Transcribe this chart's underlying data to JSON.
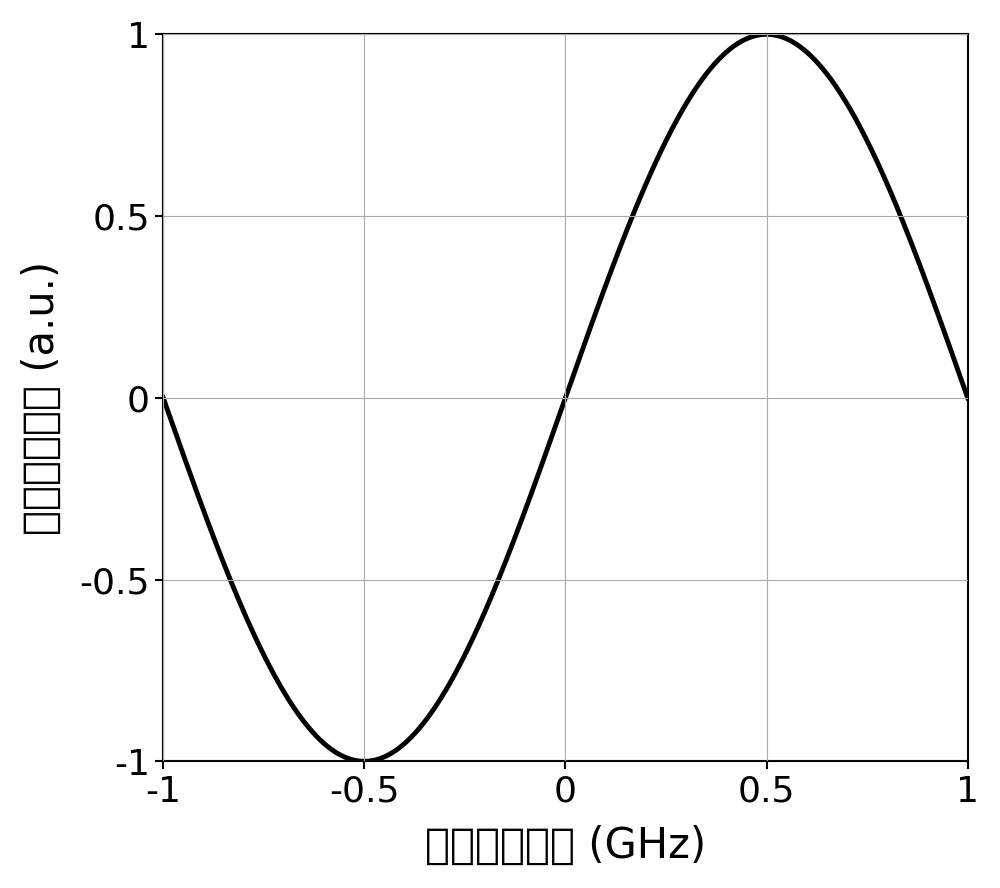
{
  "xlabel": "频率失锁定量 (GHz)",
  "ylabel": "误差信号幅值 (a.u.)",
  "xlim": [
    -1,
    1
  ],
  "ylim": [
    -1,
    1
  ],
  "xticks": [
    -1,
    -0.5,
    0,
    0.5,
    1
  ],
  "yticks": [
    -1,
    -0.5,
    0,
    0.5,
    1
  ],
  "xtick_labels": [
    "-1",
    "-0.5",
    "0",
    "0.5",
    "1"
  ],
  "ytick_labels": [
    "-1",
    "-0.5",
    "0",
    "0.5",
    "1"
  ],
  "line_color": "#000000",
  "line_width": 3.5,
  "background_color": "#ffffff",
  "grid_color": "#aaaaaa",
  "grid_linewidth": 0.8,
  "xlabel_fontsize": 30,
  "ylabel_fontsize": 30,
  "tick_fontsize": 26
}
